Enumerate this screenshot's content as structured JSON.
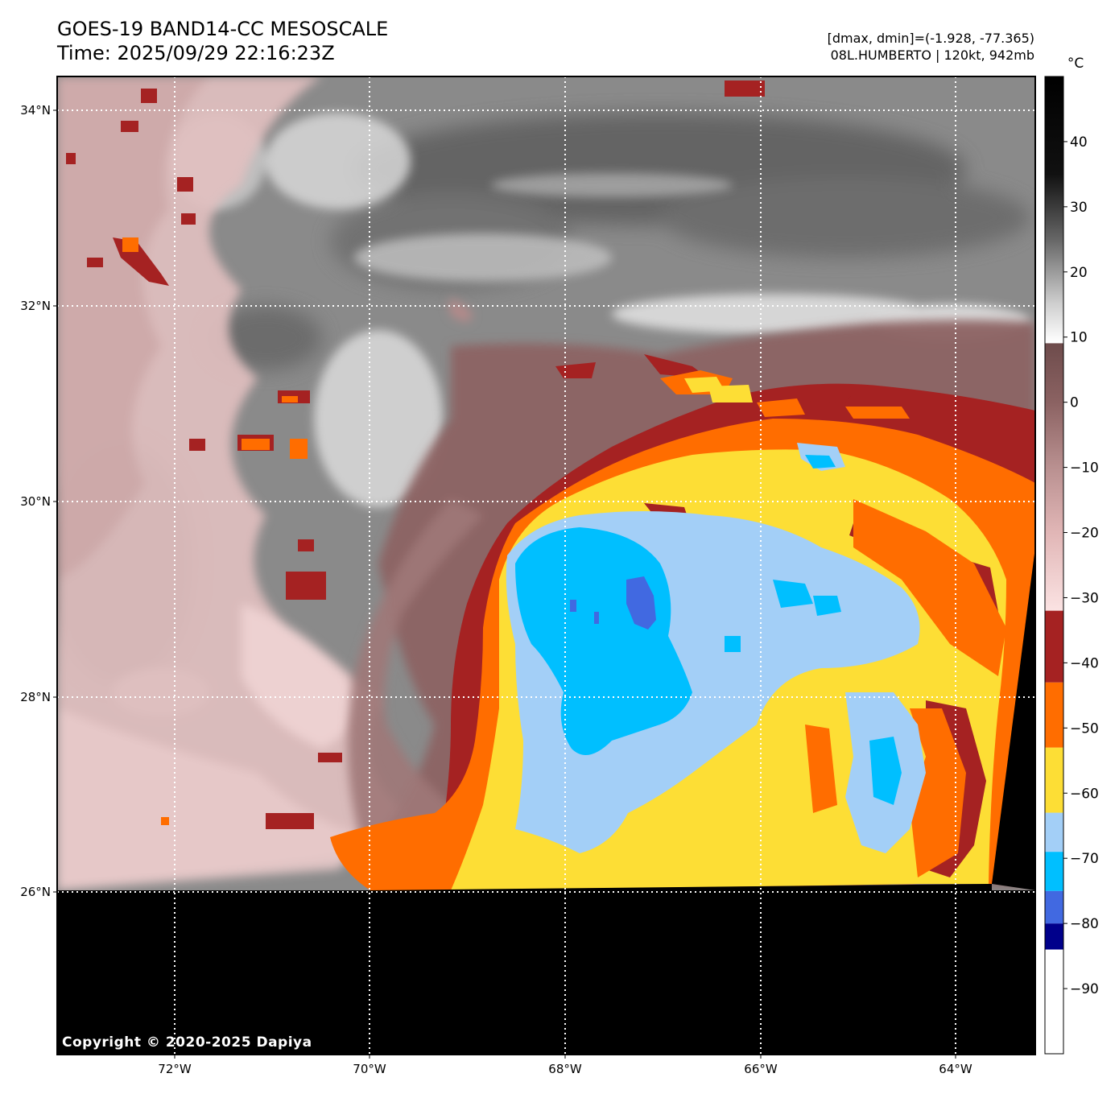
{
  "header": {
    "title_line1": "GOES-19 BAND14-CC MESOSCALE",
    "title_line2": "Time: 2025/09/29 22:16:23Z",
    "dminmax": "[dmax, dmin]=(-1.928, -77.365)",
    "storm": "08L.HUMBERTO | 120kt, 942mb"
  },
  "map": {
    "lat_labels": [
      "34°N",
      "32°N",
      "30°N",
      "28°N",
      "26°N"
    ],
    "lon_labels": [
      "72°W",
      "70°W",
      "68°W",
      "66°W",
      "64°W"
    ],
    "copyright": "Copyright © 2020-2025 Dapiya",
    "no_data_color": "#000000"
  },
  "colorbar": {
    "unit": "°C",
    "tick_labels": [
      "40",
      "30",
      "20",
      "10",
      "0",
      "−10",
      "−20",
      "−30",
      "−40",
      "−50",
      "−60",
      "−70",
      "−80",
      "−90"
    ],
    "range": [
      -100,
      50
    ],
    "bands": [
      {
        "from": -100,
        "to": -84,
        "color": "#ffffff"
      },
      {
        "from": -84,
        "to": -80,
        "color": "#00008b"
      },
      {
        "from": -80,
        "to": -75,
        "color": "#4169e1"
      },
      {
        "from": -75,
        "to": -69,
        "color": "#00bfff"
      },
      {
        "from": -69,
        "to": -63,
        "color": "#a3cff7"
      },
      {
        "from": -63,
        "to": -53,
        "color": "#fdde35"
      },
      {
        "from": -53,
        "to": -43,
        "color": "#ff6d00"
      },
      {
        "from": -43,
        "to": -32,
        "color": "#a52222"
      }
    ],
    "gradient": [
      {
        "t": -32,
        "color": "#fbe3e3"
      },
      {
        "t": -20,
        "color": "#e1b6b6"
      },
      {
        "t": -10,
        "color": "#b99090"
      },
      {
        "t": 0,
        "color": "#8b6262"
      },
      {
        "t": 9,
        "color": "#6e4c4c"
      },
      {
        "t": 9.1,
        "color": "#ffffff"
      },
      {
        "t": 15,
        "color": "#d0d0d0"
      },
      {
        "t": 25,
        "color": "#666666"
      },
      {
        "t": 35,
        "color": "#111111"
      },
      {
        "t": 50,
        "color": "#000000"
      }
    ]
  },
  "palette": {
    "frame": "#000000",
    "grid": "#ffffff",
    "gray_bg": "#8a8a8a",
    "gray_dark": "#5e5e5e",
    "white_cloud": "#e4e4e4",
    "pink": "#e5c4c4",
    "brown": "#8c6363",
    "red": "#a52222",
    "orange": "#ff6d00",
    "yellow": "#fdde35",
    "light_blue": "#a3cff7",
    "cyan": "#00bfff",
    "royal_blue": "#4169e1"
  }
}
